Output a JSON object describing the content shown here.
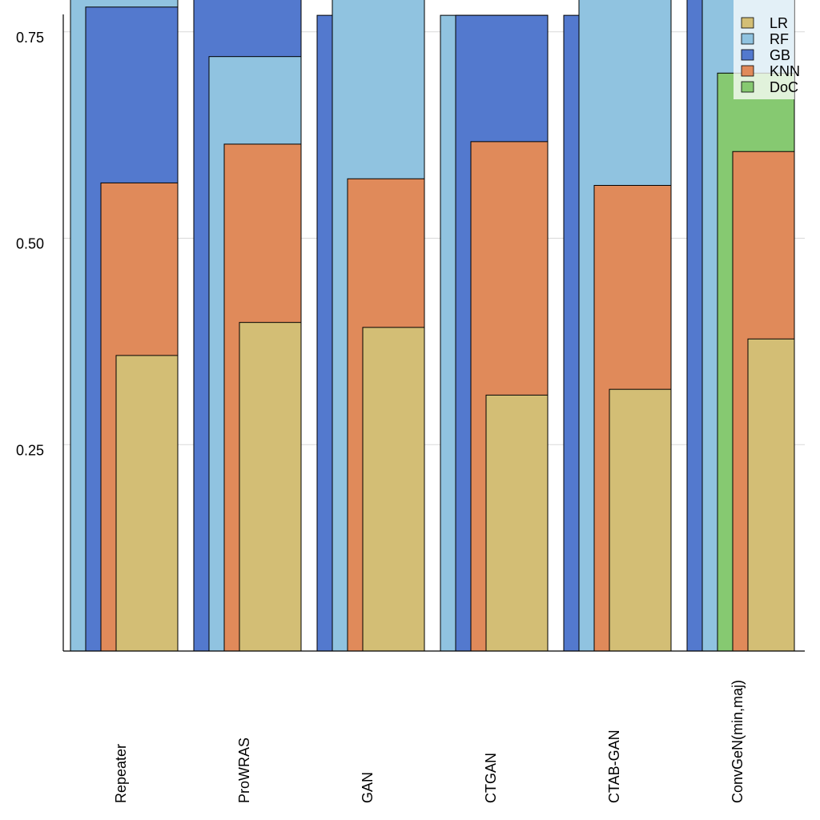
{
  "chart_data": {
    "type": "bar",
    "title": "",
    "xlabel": "",
    "ylabel": "",
    "ylim": [
      0,
      0.77
    ],
    "yticks": [
      0.25,
      0.5,
      0.75
    ],
    "ytick_labels": [
      "0.25",
      "0.50",
      "0.75"
    ],
    "grid": true,
    "legend_position": "top-right",
    "categories": [
      "Repeater",
      "ProWRAS",
      "GAN",
      "CTGAN",
      "CTAB-GAN",
      "ConvGeN(min,maj)"
    ],
    "series": [
      {
        "name": "DoC",
        "color": "#86c971",
        "values": [
          null,
          null,
          null,
          null,
          null,
          0.7
        ]
      },
      {
        "name": "RF",
        "color": "#90c3e0",
        "values": [
          0.85,
          0.72,
          0.83,
          0.77,
          0.83,
          0.86
        ]
      },
      {
        "name": "GB",
        "color": "#5379ce",
        "values": [
          0.78,
          0.85,
          0.77,
          0.77,
          0.77,
          0.86
        ]
      },
      {
        "name": "KNN",
        "color": "#e08a5a",
        "values": [
          0.567,
          0.614,
          0.572,
          0.617,
          0.564,
          0.605
        ]
      },
      {
        "name": "LR",
        "color": "#d3be75",
        "values": [
          0.358,
          0.398,
          0.392,
          0.31,
          0.317,
          0.378
        ]
      }
    ],
    "legend": [
      {
        "name": "LR",
        "color": "#d3be75"
      },
      {
        "name": "RF",
        "color": "#90c3e0"
      },
      {
        "name": "GB",
        "color": "#5379ce"
      },
      {
        "name": "KNN",
        "color": "#e08a5a"
      },
      {
        "name": "DoC",
        "color": "#86c971"
      }
    ]
  }
}
